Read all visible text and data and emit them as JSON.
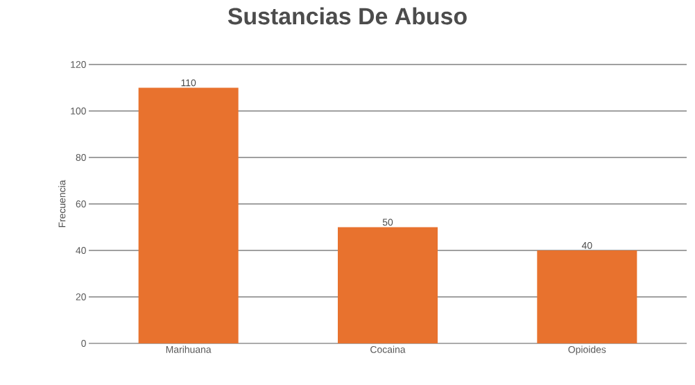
{
  "chart_data": {
    "type": "bar",
    "title": "Sustancias De Abuso",
    "ylabel": "Frecuencia",
    "categories": [
      "Marihuana",
      "Cocaina",
      "Opioides"
    ],
    "values": [
      110,
      50,
      40
    ],
    "color": "#e8722e",
    "ylim": [
      0,
      120
    ],
    "yticks": [
      0,
      20,
      40,
      60,
      80,
      100,
      120
    ],
    "grid": "y",
    "data_labels": true
  }
}
